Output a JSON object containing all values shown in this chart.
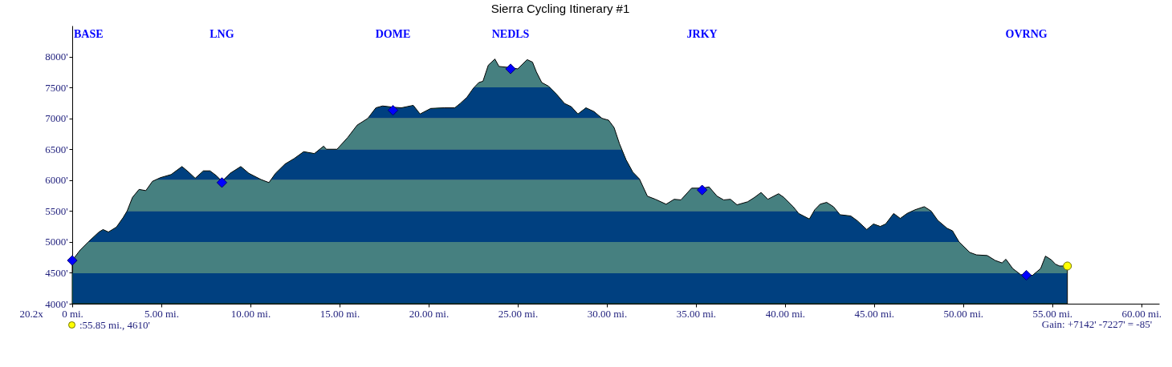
{
  "chart_data": {
    "type": "area",
    "title": "Sierra Cycling Itinerary #1",
    "xlim": [
      0,
      61
    ],
    "xticks": [
      {
        "value": 0,
        "label": "0 mi."
      },
      {
        "value": 5,
        "label": "5.00 mi."
      },
      {
        "value": 10,
        "label": "10.00 mi."
      },
      {
        "value": 15,
        "label": "15.00 mi."
      },
      {
        "value": 20,
        "label": "20.00 mi."
      },
      {
        "value": 25,
        "label": "25.00 mi."
      },
      {
        "value": 30,
        "label": "30.00 mi."
      },
      {
        "value": 35,
        "label": "35.00 mi."
      },
      {
        "value": 40,
        "label": "40.00 mi."
      },
      {
        "value": 45,
        "label": "45.00 mi."
      },
      {
        "value": 50,
        "label": "50.00 mi."
      },
      {
        "value": 55,
        "label": "55.00 mi."
      },
      {
        "value": 60,
        "label": "60.00 mi."
      }
    ],
    "ylim": [
      4000,
      8500
    ],
    "yticks": [
      {
        "value": 4000,
        "label": "4000'"
      },
      {
        "value": 4500,
        "label": "4500'"
      },
      {
        "value": 5000,
        "label": "5000'"
      },
      {
        "value": 5500,
        "label": "5500'"
      },
      {
        "value": 6000,
        "label": "6000'"
      },
      {
        "value": 6500,
        "label": "6500'"
      },
      {
        "value": 7000,
        "label": "7000'"
      },
      {
        "value": 7500,
        "label": "7500'"
      },
      {
        "value": 8000,
        "label": "8000'"
      }
    ],
    "bands": [
      {
        "axis": "y",
        "from": 4000,
        "to": 4500,
        "color": "#004080"
      },
      {
        "axis": "y",
        "from": 5000,
        "to": 5500,
        "color": "#004080"
      },
      {
        "axis": "y",
        "from": 6000,
        "to": 6500,
        "color": "#004080"
      },
      {
        "axis": "y",
        "from": 7000,
        "to": 7500,
        "color": "#004080"
      }
    ],
    "series": [
      {
        "type": "area",
        "color": "#468080",
        "x": [
          0,
          0.45,
          0.9,
          1.5,
          1.73,
          2.03,
          2.48,
          2.85,
          3.08,
          3.38,
          3.75,
          4.13,
          4.5,
          4.95,
          5.55,
          6.16,
          6.53,
          6.9,
          7.36,
          7.73,
          8.1,
          8.4,
          8.86,
          9.46,
          9.91,
          10.59,
          11.04,
          11.41,
          11.94,
          12.46,
          12.99,
          13.59,
          14.11,
          14.26,
          14.86,
          15.46,
          15.99,
          16.59,
          17.04,
          17.42,
          18.02,
          18.47,
          19.14,
          19.52,
          20.12,
          20.87,
          21.47,
          21.77,
          22.15,
          22.52,
          22.82,
          23.05,
          23.35,
          23.72,
          23.95,
          24.62,
          25.0,
          25.53,
          25.83,
          26.05,
          26.35,
          26.73,
          27.18,
          27.63,
          28.0,
          28.38,
          28.83,
          29.28,
          29.73,
          30.1,
          30.41,
          30.71,
          31.08,
          31.46,
          31.83,
          32.28,
          32.73,
          33.33,
          33.78,
          34.16,
          34.76,
          35.36,
          35.74,
          36.19,
          36.56,
          36.94,
          37.31,
          37.91,
          38.29,
          38.66,
          39.04,
          39.64,
          39.94,
          40.46,
          40.77,
          41.37,
          41.67,
          41.97,
          42.34,
          42.72,
          43.09,
          43.69,
          44.07,
          44.59,
          44.97,
          45.35,
          45.65,
          46.1,
          46.47,
          46.85,
          47.3,
          47.82,
          48.2,
          48.57,
          49.1,
          49.4,
          49.77,
          50.37,
          50.75,
          51.35,
          51.8,
          52.18,
          52.4,
          52.78,
          53.23,
          53.55,
          53.9,
          54.35,
          54.62,
          54.95,
          55.18,
          55.41,
          55.85
        ],
        "values": [
          4700,
          4870,
          5000,
          5160,
          5200,
          5160,
          5240,
          5390,
          5500,
          5720,
          5850,
          5830,
          5980,
          6040,
          6090,
          6220,
          6130,
          6030,
          6150,
          6150,
          6070,
          5980,
          6110,
          6220,
          6110,
          6010,
          5960,
          6110,
          6260,
          6350,
          6460,
          6430,
          6550,
          6500,
          6500,
          6690,
          6890,
          7000,
          7170,
          7200,
          7180,
          7170,
          7210,
          7070,
          7160,
          7170,
          7170,
          7240,
          7340,
          7490,
          7580,
          7600,
          7860,
          7960,
          7840,
          7820,
          7800,
          7950,
          7910,
          7750,
          7580,
          7520,
          7390,
          7240,
          7190,
          7070,
          7170,
          7110,
          7000,
          6970,
          6850,
          6590,
          6330,
          6130,
          6020,
          5740,
          5690,
          5610,
          5690,
          5680,
          5870,
          5870,
          5890,
          5740,
          5680,
          5690,
          5600,
          5650,
          5720,
          5800,
          5690,
          5780,
          5720,
          5570,
          5460,
          5370,
          5520,
          5610,
          5640,
          5570,
          5440,
          5420,
          5340,
          5200,
          5290,
          5250,
          5290,
          5460,
          5380,
          5460,
          5520,
          5570,
          5500,
          5350,
          5220,
          5180,
          5000,
          4830,
          4790,
          4780,
          4700,
          4660,
          4720,
          4570,
          4470,
          4460,
          4460,
          4570,
          4770,
          4710,
          4640,
          4610,
          4610
        ]
      },
      {
        "type": "scatter",
        "color": "#0000ff",
        "marker": "diamond",
        "x": [
          0,
          8.4,
          18.0,
          24.6,
          35.35,
          53.55
        ],
        "values": [
          4700,
          5960,
          7130,
          7800,
          5840,
          4460
        ]
      },
      {
        "type": "scatter",
        "name": ":55.85 mi., 4610'",
        "color": "#ffff00",
        "marker": "circle",
        "x": [
          55.85
        ],
        "values": [
          4610
        ]
      }
    ],
    "legend": "bottom left",
    "annotations": [
      "BASE",
      "LNG",
      "DOME",
      "NEDLS",
      "JRKY",
      "OVRNG",
      "20.2x",
      "Gain: +7142' -7227' = -85'"
    ]
  }
}
